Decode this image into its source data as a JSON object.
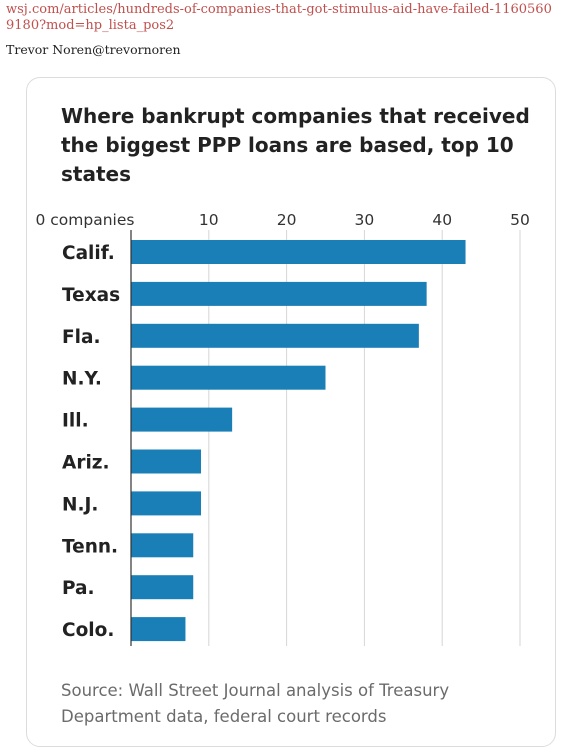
{
  "post": {
    "link_text": "wsj.com/articles/hundreds-of-companies-that-got-stimulus-aid-have-failed-11605609180?mod=hp_lista_pos2",
    "author": "Trevor Noren@trevornoren"
  },
  "chart_data": {
    "type": "bar",
    "orientation": "horizontal",
    "title": "Where bankrupt companies that received the biggest PPP loans are based, top 10 states",
    "categories": [
      "Calif.",
      "Texas",
      "Fla.",
      "N.Y.",
      "Ill.",
      "Ariz.",
      "N.J.",
      "Tenn.",
      "Pa.",
      "Colo."
    ],
    "values": [
      43,
      38,
      37,
      25,
      13,
      9,
      9,
      8,
      8,
      7
    ],
    "x_ticks": [
      0,
      10,
      20,
      30,
      40,
      50
    ],
    "x_tick_labels": [
      "0 companies",
      "10",
      "20",
      "30",
      "40",
      "50"
    ],
    "xlim": [
      0,
      50
    ],
    "grid": true,
    "bar_color": "#1a7fb6",
    "source": "Source: Wall Street Journal analysis of Treasury Department data, federal court records"
  }
}
